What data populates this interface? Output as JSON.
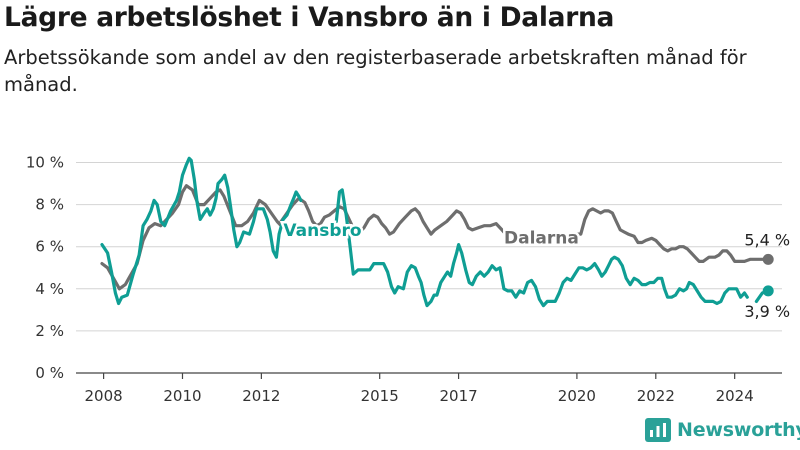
{
  "title": "Lägre arbetslöshet i Vansbro än i Dalarna",
  "subtitle": "Arbetssökande som andel av den registerbaserade arbetskraften månad för månad.",
  "brand": {
    "name": "Newsworthy",
    "color": "#2aa198"
  },
  "colors": {
    "vansbro": "#0f9e94",
    "dalarna": "#6e6e6e",
    "grid": "#d4d4d4"
  },
  "chart_data": {
    "type": "line",
    "y_ticks": [
      "0 %",
      "2 %",
      "4 %",
      "6 %",
      "8 %",
      "10 %"
    ],
    "ylim": [
      0,
      10.5
    ],
    "x_ticks": [
      "2008",
      "2010",
      "2012",
      "2015",
      "2017",
      "2020",
      "2022",
      "2024"
    ],
    "xlim": [
      2007.3,
      2025.2
    ],
    "grid": true,
    "series": [
      {
        "name": "Vansbro",
        "end_label": "3,9 %",
        "points": [
          [
            2007.96,
            6.1
          ],
          [
            2008.1,
            5.7
          ],
          [
            2008.2,
            4.8
          ],
          [
            2008.3,
            3.8
          ],
          [
            2008.38,
            3.3
          ],
          [
            2008.46,
            3.6
          ],
          [
            2008.6,
            3.7
          ],
          [
            2008.75,
            4.7
          ],
          [
            2008.9,
            5.6
          ],
          [
            2009.0,
            7.0
          ],
          [
            2009.1,
            7.3
          ],
          [
            2009.2,
            7.7
          ],
          [
            2009.28,
            8.2
          ],
          [
            2009.36,
            8.0
          ],
          [
            2009.45,
            7.2
          ],
          [
            2009.55,
            7.0
          ],
          [
            2009.7,
            7.7
          ],
          [
            2009.85,
            8.2
          ],
          [
            2009.92,
            8.6
          ],
          [
            2010.0,
            9.4
          ],
          [
            2010.1,
            9.9
          ],
          [
            2010.17,
            10.2
          ],
          [
            2010.22,
            10.1
          ],
          [
            2010.3,
            9.2
          ],
          [
            2010.37,
            8.1
          ],
          [
            2010.45,
            7.3
          ],
          [
            2010.55,
            7.6
          ],
          [
            2010.63,
            7.8
          ],
          [
            2010.7,
            7.5
          ],
          [
            2010.78,
            7.8
          ],
          [
            2010.85,
            8.3
          ],
          [
            2010.9,
            9.0
          ],
          [
            2011.0,
            9.2
          ],
          [
            2011.07,
            9.4
          ],
          [
            2011.15,
            8.8
          ],
          [
            2011.22,
            7.9
          ],
          [
            2011.3,
            6.8
          ],
          [
            2011.38,
            6.0
          ],
          [
            2011.45,
            6.2
          ],
          [
            2011.55,
            6.7
          ],
          [
            2011.7,
            6.6
          ],
          [
            2011.8,
            7.2
          ],
          [
            2011.88,
            7.8
          ],
          [
            2011.96,
            7.8
          ],
          [
            2012.05,
            7.8
          ],
          [
            2012.15,
            7.3
          ],
          [
            2012.22,
            6.7
          ],
          [
            2012.3,
            5.8
          ],
          [
            2012.38,
            5.5
          ],
          [
            2012.45,
            6.6
          ],
          [
            2012.55,
            7.3
          ],
          [
            2012.65,
            7.5
          ],
          [
            2012.75,
            8.0
          ],
          [
            2012.82,
            8.3
          ],
          [
            2012.88,
            8.6
          ],
          [
            2012.95,
            8.4
          ],
          [
            2013.0,
            8.2
          ]
        ]
      },
      {
        "name": "Vansbro (fortsättning)",
        "points": [
          [
            2013.9,
            7.2
          ],
          [
            2013.98,
            8.6
          ],
          [
            2014.05,
            8.7
          ],
          [
            2014.15,
            7.5
          ],
          [
            2014.25,
            6.0
          ],
          [
            2014.33,
            4.7
          ],
          [
            2014.45,
            4.9
          ],
          [
            2014.6,
            4.9
          ],
          [
            2014.75,
            4.9
          ],
          [
            2014.85,
            5.2
          ],
          [
            2015.0,
            5.2
          ],
          [
            2015.1,
            5.2
          ],
          [
            2015.2,
            4.8
          ],
          [
            2015.3,
            4.1
          ],
          [
            2015.38,
            3.8
          ],
          [
            2015.47,
            4.1
          ],
          [
            2015.6,
            4.0
          ],
          [
            2015.7,
            4.8
          ],
          [
            2015.8,
            5.1
          ],
          [
            2015.9,
            5.0
          ],
          [
            2015.98,
            4.6
          ],
          [
            2016.05,
            4.3
          ],
          [
            2016.12,
            3.7
          ],
          [
            2016.2,
            3.2
          ],
          [
            2016.3,
            3.4
          ],
          [
            2016.38,
            3.7
          ],
          [
            2016.45,
            3.7
          ],
          [
            2016.55,
            4.3
          ],
          [
            2016.65,
            4.6
          ],
          [
            2016.72,
            4.8
          ],
          [
            2016.8,
            4.6
          ],
          [
            2016.87,
            5.2
          ],
          [
            2016.95,
            5.7
          ],
          [
            2017.0,
            6.1
          ],
          [
            2017.08,
            5.7
          ],
          [
            2017.18,
            4.9
          ],
          [
            2017.27,
            4.3
          ],
          [
            2017.35,
            4.2
          ],
          [
            2017.45,
            4.6
          ],
          [
            2017.55,
            4.8
          ],
          [
            2017.65,
            4.6
          ],
          [
            2017.75,
            4.8
          ],
          [
            2017.85,
            5.1
          ],
          [
            2017.95,
            4.9
          ],
          [
            2018.05,
            5.0
          ],
          [
            2018.15,
            4.0
          ],
          [
            2018.25,
            3.9
          ],
          [
            2018.35,
            3.9
          ],
          [
            2018.45,
            3.6
          ],
          [
            2018.55,
            3.9
          ],
          [
            2018.65,
            3.8
          ],
          [
            2018.75,
            4.3
          ],
          [
            2018.85,
            4.4
          ],
          [
            2018.95,
            4.1
          ],
          [
            2019.05,
            3.5
          ],
          [
            2019.15,
            3.2
          ],
          [
            2019.25,
            3.4
          ],
          [
            2019.35,
            3.4
          ],
          [
            2019.45,
            3.4
          ],
          [
            2019.55,
            3.8
          ],
          [
            2019.65,
            4.3
          ],
          [
            2019.75,
            4.5
          ],
          [
            2019.85,
            4.4
          ],
          [
            2019.95,
            4.7
          ],
          [
            2020.05,
            5.0
          ],
          [
            2020.15,
            5.0
          ],
          [
            2020.25,
            4.9
          ],
          [
            2020.35,
            5.0
          ],
          [
            2020.45,
            5.2
          ],
          [
            2020.55,
            4.9
          ],
          [
            2020.63,
            4.6
          ],
          [
            2020.72,
            4.8
          ],
          [
            2020.8,
            5.1
          ],
          [
            2020.88,
            5.4
          ],
          [
            2020.95,
            5.5
          ],
          [
            2021.05,
            5.4
          ],
          [
            2021.15,
            5.1
          ],
          [
            2021.25,
            4.5
          ],
          [
            2021.35,
            4.2
          ],
          [
            2021.45,
            4.5
          ],
          [
            2021.55,
            4.4
          ],
          [
            2021.65,
            4.2
          ],
          [
            2021.75,
            4.2
          ],
          [
            2021.85,
            4.3
          ],
          [
            2021.95,
            4.3
          ],
          [
            2022.05,
            4.5
          ],
          [
            2022.15,
            4.5
          ],
          [
            2022.22,
            4.0
          ],
          [
            2022.3,
            3.6
          ],
          [
            2022.4,
            3.6
          ],
          [
            2022.5,
            3.7
          ],
          [
            2022.6,
            4.0
          ],
          [
            2022.7,
            3.9
          ],
          [
            2022.78,
            4.0
          ],
          [
            2022.85,
            4.3
          ],
          [
            2022.95,
            4.2
          ],
          [
            2023.05,
            3.9
          ],
          [
            2023.15,
            3.6
          ],
          [
            2023.25,
            3.4
          ],
          [
            2023.35,
            3.4
          ],
          [
            2023.45,
            3.4
          ],
          [
            2023.55,
            3.3
          ],
          [
            2023.65,
            3.4
          ],
          [
            2023.75,
            3.8
          ],
          [
            2023.85,
            4.0
          ],
          [
            2023.95,
            4.0
          ],
          [
            2024.05,
            4.0
          ],
          [
            2024.15,
            3.6
          ],
          [
            2024.25,
            3.8
          ],
          [
            2024.32,
            3.6
          ]
        ]
      },
      {
        "name": "Vansbro (slut)",
        "points": [
          [
            2024.55,
            3.4
          ],
          [
            2024.7,
            3.8
          ],
          [
            2024.85,
            3.9
          ]
        ]
      },
      {
        "name": "Dalarna",
        "end_label": "5,4 %",
        "points": [
          [
            2007.96,
            5.2
          ],
          [
            2008.1,
            5.0
          ],
          [
            2008.25,
            4.5
          ],
          [
            2008.4,
            4.0
          ],
          [
            2008.55,
            4.2
          ],
          [
            2008.7,
            4.7
          ],
          [
            2008.85,
            5.2
          ],
          [
            2009.0,
            6.3
          ],
          [
            2009.15,
            6.9
          ],
          [
            2009.3,
            7.1
          ],
          [
            2009.45,
            7.0
          ],
          [
            2009.6,
            7.3
          ],
          [
            2009.75,
            7.6
          ],
          [
            2009.9,
            8.0
          ],
          [
            2010.0,
            8.6
          ],
          [
            2010.1,
            8.9
          ],
          [
            2010.25,
            8.7
          ],
          [
            2010.4,
            8.0
          ],
          [
            2010.55,
            8.0
          ],
          [
            2010.7,
            8.3
          ],
          [
            2010.85,
            8.6
          ],
          [
            2010.95,
            8.7
          ],
          [
            2011.05,
            8.4
          ],
          [
            2011.2,
            7.7
          ],
          [
            2011.35,
            7.0
          ],
          [
            2011.5,
            7.0
          ],
          [
            2011.65,
            7.2
          ],
          [
            2011.8,
            7.6
          ],
          [
            2011.95,
            8.2
          ],
          [
            2012.1,
            8.0
          ],
          [
            2012.25,
            7.6
          ],
          [
            2012.4,
            7.2
          ],
          [
            2012.5,
            7.0
          ]
        ]
      },
      {
        "name": "Dalarna (fortsättning)",
        "points": [
          [
            2012.5,
            7.2
          ],
          [
            2012.65,
            7.6
          ],
          [
            2012.8,
            8.0
          ],
          [
            2012.95,
            8.3
          ],
          [
            2013.1,
            8.1
          ],
          [
            2013.2,
            7.7
          ],
          [
            2013.3,
            7.2
          ],
          [
            2013.4,
            7.0
          ],
          [
            2013.5,
            7.1
          ],
          [
            2013.6,
            7.4
          ],
          [
            2013.72,
            7.5
          ],
          [
            2013.85,
            7.7
          ],
          [
            2013.98,
            7.9
          ],
          [
            2014.1,
            7.8
          ],
          [
            2014.2,
            7.4
          ],
          [
            2014.3,
            7.0
          ],
          [
            2014.4,
            6.8
          ],
          [
            2014.5,
            6.7
          ],
          [
            2014.6,
            6.9
          ],
          [
            2014.72,
            7.3
          ],
          [
            2014.85,
            7.5
          ],
          [
            2014.95,
            7.4
          ],
          [
            2015.05,
            7.1
          ],
          [
            2015.15,
            6.9
          ],
          [
            2015.25,
            6.6
          ],
          [
            2015.35,
            6.7
          ],
          [
            2015.5,
            7.1
          ],
          [
            2015.65,
            7.4
          ],
          [
            2015.8,
            7.7
          ],
          [
            2015.9,
            7.8
          ],
          [
            2016.0,
            7.6
          ],
          [
            2016.1,
            7.2
          ],
          [
            2016.2,
            6.9
          ],
          [
            2016.3,
            6.6
          ],
          [
            2016.4,
            6.8
          ],
          [
            2016.55,
            7.0
          ],
          [
            2016.7,
            7.2
          ],
          [
            2016.85,
            7.5
          ],
          [
            2016.95,
            7.7
          ],
          [
            2017.05,
            7.6
          ],
          [
            2017.15,
            7.3
          ],
          [
            2017.25,
            6.9
          ],
          [
            2017.35,
            6.8
          ],
          [
            2017.5,
            6.9
          ],
          [
            2017.65,
            7.0
          ],
          [
            2017.8,
            7.0
          ],
          [
            2017.95,
            7.1
          ],
          [
            2018.1,
            6.8
          ],
          [
            2018.15,
            6.7
          ]
        ]
      },
      {
        "name": "Dalarna (slut)",
        "points": [
          [
            2019.9,
            6.5
          ],
          [
            2020.0,
            6.6
          ],
          [
            2020.1,
            6.6
          ],
          [
            2020.2,
            7.3
          ],
          [
            2020.3,
            7.7
          ],
          [
            2020.4,
            7.8
          ],
          [
            2020.5,
            7.7
          ],
          [
            2020.6,
            7.6
          ],
          [
            2020.7,
            7.7
          ],
          [
            2020.8,
            7.7
          ],
          [
            2020.9,
            7.6
          ],
          [
            2021.0,
            7.2
          ],
          [
            2021.1,
            6.8
          ],
          [
            2021.2,
            6.7
          ],
          [
            2021.3,
            6.6
          ],
          [
            2021.45,
            6.5
          ],
          [
            2021.55,
            6.2
          ],
          [
            2021.65,
            6.2
          ],
          [
            2021.75,
            6.3
          ],
          [
            2021.9,
            6.4
          ],
          [
            2022.0,
            6.3
          ],
          [
            2022.1,
            6.1
          ],
          [
            2022.2,
            5.9
          ],
          [
            2022.3,
            5.8
          ],
          [
            2022.4,
            5.9
          ],
          [
            2022.5,
            5.9
          ],
          [
            2022.6,
            6.0
          ],
          [
            2022.7,
            6.0
          ],
          [
            2022.8,
            5.9
          ],
          [
            2022.9,
            5.7
          ],
          [
            2023.0,
            5.5
          ],
          [
            2023.1,
            5.3
          ],
          [
            2023.2,
            5.3
          ],
          [
            2023.35,
            5.5
          ],
          [
            2023.5,
            5.5
          ],
          [
            2023.6,
            5.6
          ],
          [
            2023.7,
            5.8
          ],
          [
            2023.8,
            5.8
          ],
          [
            2023.9,
            5.6
          ],
          [
            2024.0,
            5.3
          ],
          [
            2024.1,
            5.3
          ],
          [
            2024.25,
            5.3
          ],
          [
            2024.4,
            5.4
          ],
          [
            2024.55,
            5.4
          ],
          [
            2024.7,
            5.4
          ],
          [
            2024.85,
            5.4
          ]
        ]
      }
    ],
    "labels": [
      {
        "text": "Vansbro",
        "series": "Vansbro",
        "x": 2013.55,
        "y": 6.5
      },
      {
        "text": "Dalarna",
        "series": "Dalarna",
        "x": 2019.1,
        "y": 6.15
      }
    ]
  }
}
